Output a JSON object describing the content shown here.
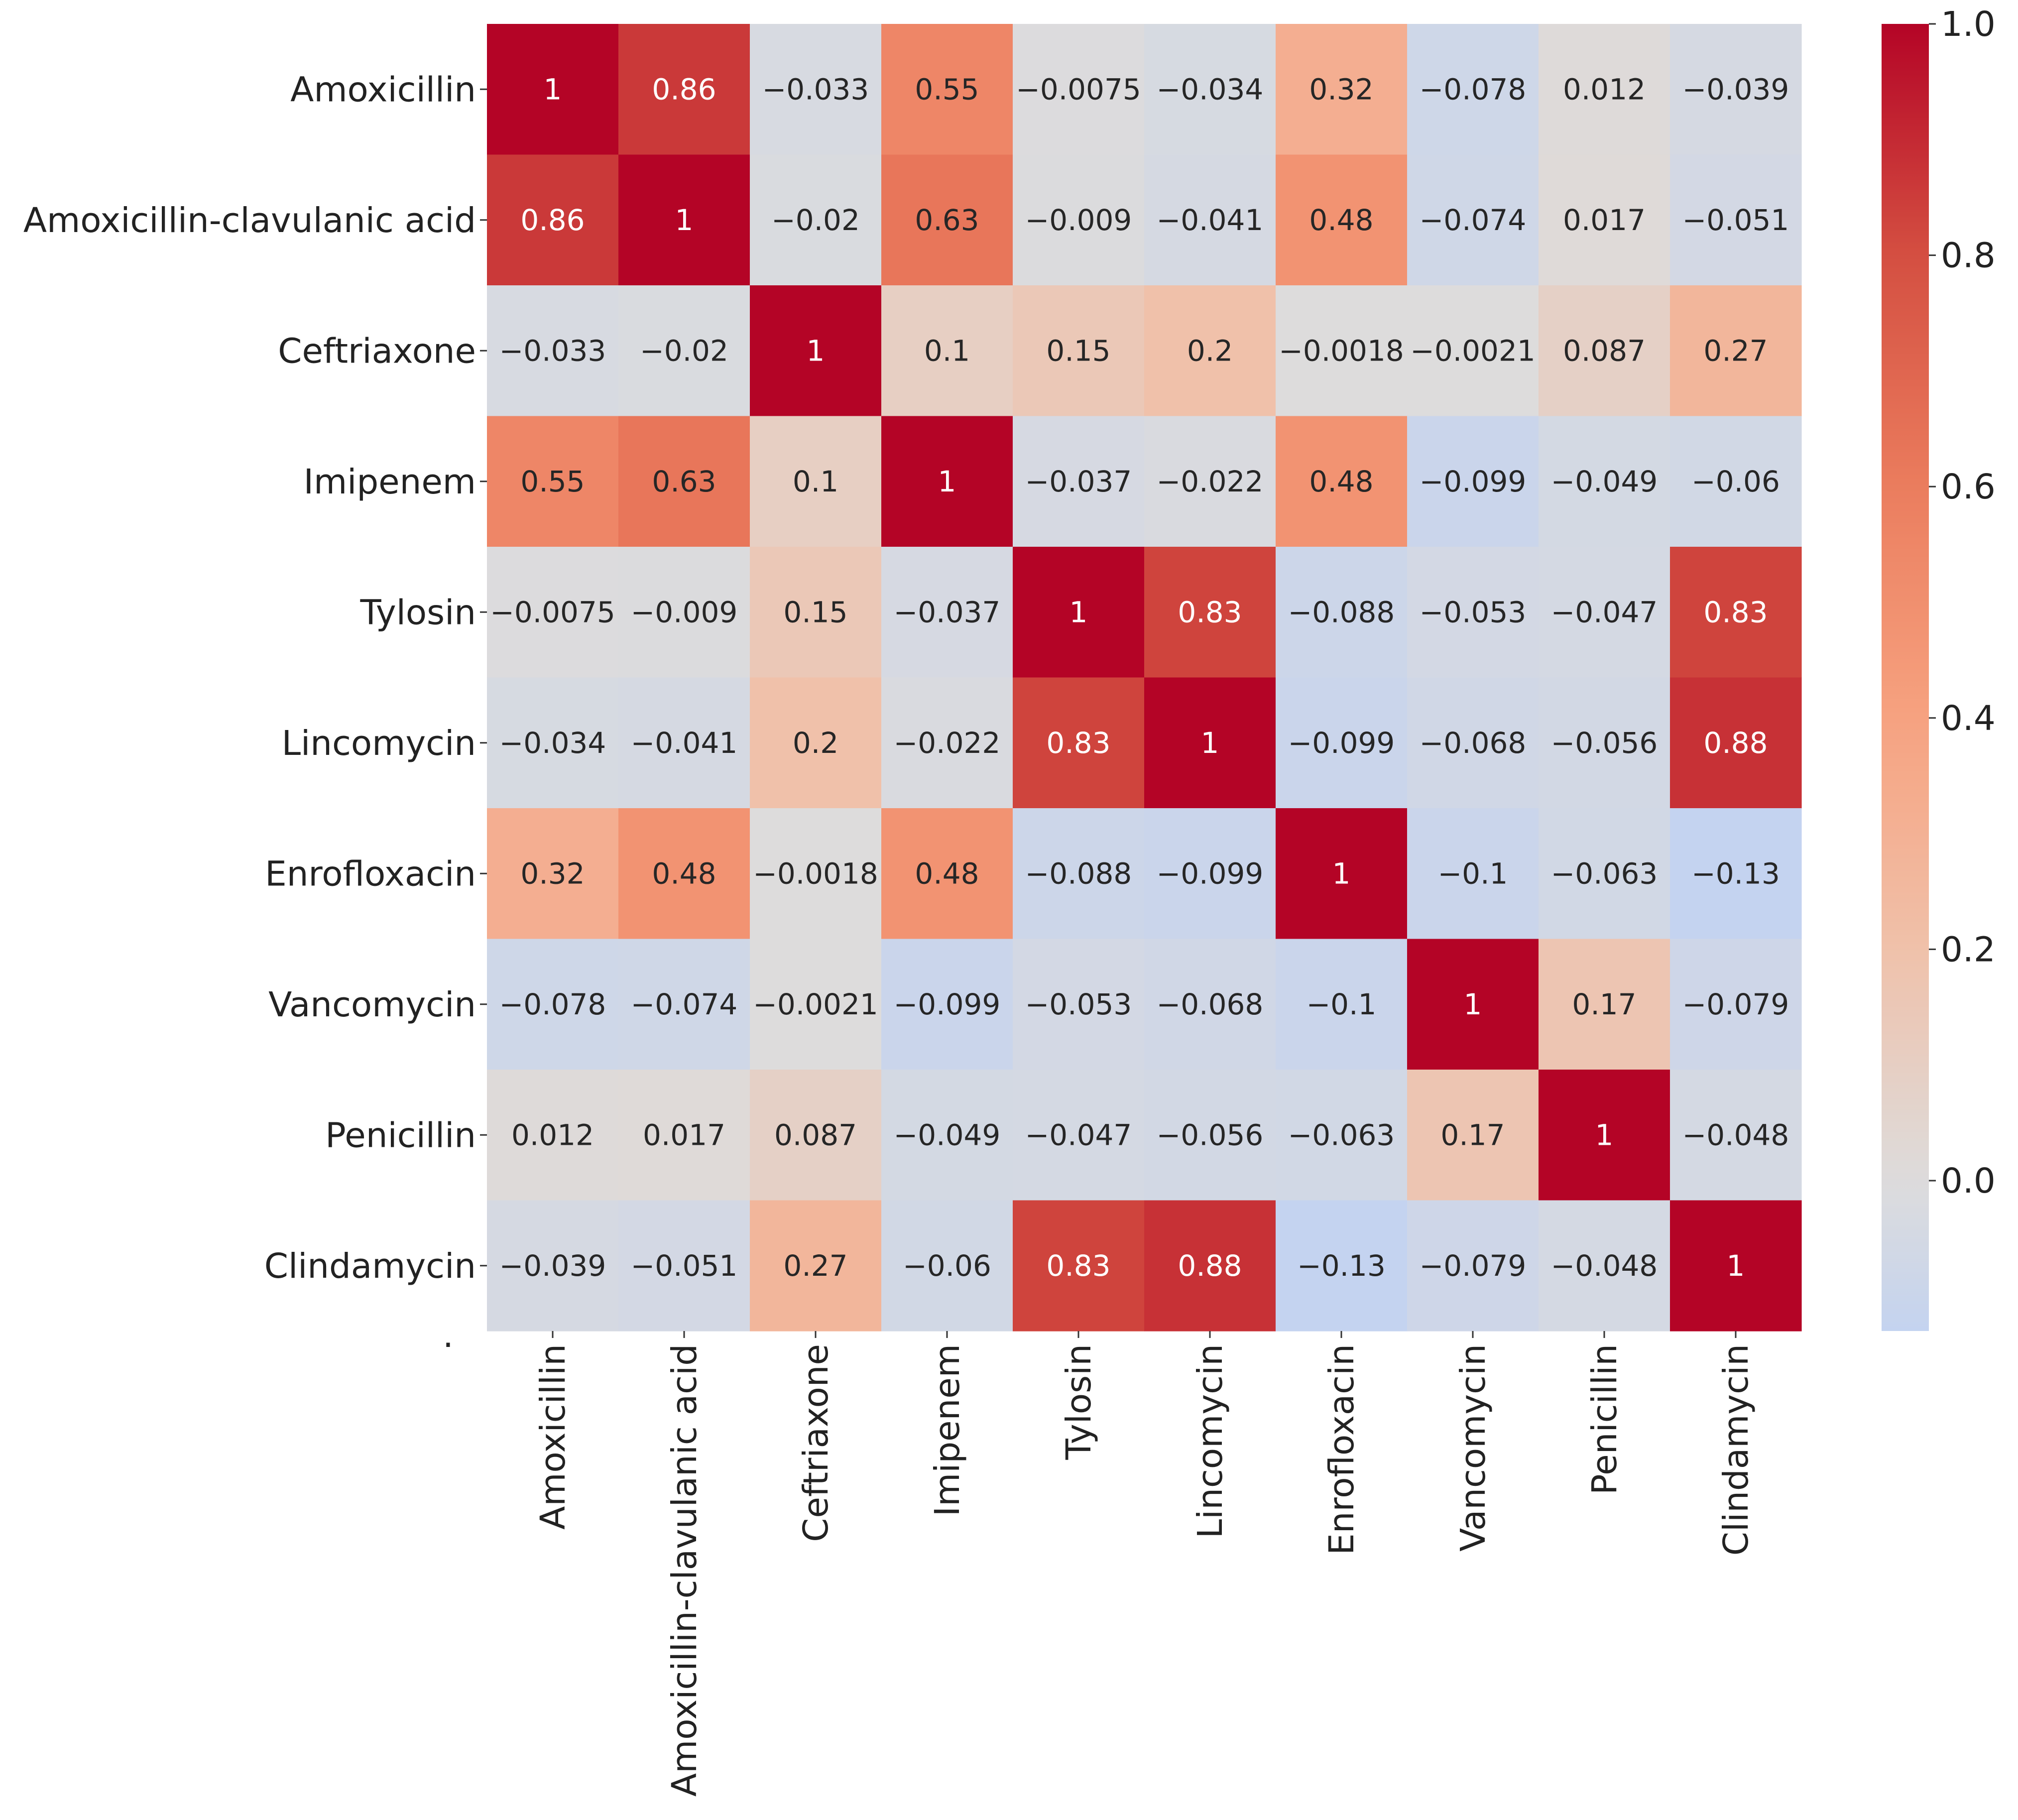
{
  "chart_data": {
    "type": "heatmap",
    "title": "",
    "xlabel": "",
    "ylabel": "",
    "row_labels": [
      "Amoxicillin",
      "Amoxicillin-clavulanic acid",
      "Ceftriaxone",
      "Imipenem",
      "Tylosin",
      "Lincomycin",
      "Enrofloxacin",
      "Vancomycin",
      "Penicillin",
      "Clindamycin"
    ],
    "col_labels": [
      "Amoxicillin",
      "Amoxicillin-clavulanic acid",
      "Ceftriaxone",
      "Imipenem",
      "Tylosin",
      "Lincomycin",
      "Enrofloxacin",
      "Vancomycin",
      "Penicillin",
      "Clindamycin"
    ],
    "values": [
      [
        1,
        0.86,
        -0.033,
        0.55,
        -0.0075,
        -0.034,
        0.32,
        -0.078,
        0.012,
        -0.039
      ],
      [
        0.86,
        1,
        -0.02,
        0.63,
        -0.009,
        -0.041,
        0.48,
        -0.074,
        0.017,
        -0.051
      ],
      [
        -0.033,
        -0.02,
        1,
        0.1,
        0.15,
        0.2,
        -0.0018,
        -0.0021,
        0.087,
        0.27
      ],
      [
        0.55,
        0.63,
        0.1,
        1,
        -0.037,
        -0.022,
        0.48,
        -0.099,
        -0.049,
        -0.06
      ],
      [
        -0.0075,
        -0.009,
        0.15,
        -0.037,
        1,
        0.83,
        -0.088,
        -0.053,
        -0.047,
        0.83
      ],
      [
        -0.034,
        -0.041,
        0.2,
        -0.022,
        0.83,
        1,
        -0.099,
        -0.068,
        -0.056,
        0.88
      ],
      [
        0.32,
        0.48,
        -0.0018,
        0.48,
        -0.088,
        -0.099,
        1,
        -0.1,
        -0.063,
        -0.13
      ],
      [
        -0.078,
        -0.074,
        -0.0021,
        -0.099,
        -0.053,
        -0.068,
        -0.1,
        1,
        0.17,
        -0.079
      ],
      [
        0.012,
        0.017,
        0.087,
        -0.049,
        -0.047,
        -0.056,
        -0.063,
        0.17,
        1,
        -0.048
      ],
      [
        -0.039,
        -0.051,
        0.27,
        -0.06,
        0.83,
        0.88,
        -0.13,
        -0.079,
        -0.048,
        1
      ]
    ],
    "annotations": [
      [
        "1",
        "0.86",
        "−0.033",
        "0.55",
        "−0.0075",
        "−0.034",
        "0.32",
        "−0.078",
        "0.012",
        "−0.039"
      ],
      [
        "0.86",
        "1",
        "−0.02",
        "0.63",
        "−0.009",
        "−0.041",
        "0.48",
        "−0.074",
        "0.017",
        "−0.051"
      ],
      [
        "−0.033",
        "−0.02",
        "1",
        "0.1",
        "0.15",
        "0.2",
        "−0.0018",
        "−0.0021",
        "0.087",
        "0.27"
      ],
      [
        "0.55",
        "0.63",
        "0.1",
        "1",
        "−0.037",
        "−0.022",
        "0.48",
        "−0.099",
        "−0.049",
        "−0.06"
      ],
      [
        "−0.0075",
        "−0.009",
        "0.15",
        "−0.037",
        "1",
        "0.83",
        "−0.088",
        "−0.053",
        "−0.047",
        "0.83"
      ],
      [
        "−0.034",
        "−0.041",
        "0.2",
        "−0.022",
        "0.83",
        "1",
        "−0.099",
        "−0.068",
        "−0.056",
        "0.88"
      ],
      [
        "0.32",
        "0.48",
        "−0.0018",
        "0.48",
        "−0.088",
        "−0.099",
        "1",
        "−0.1",
        "−0.063",
        "−0.13"
      ],
      [
        "−0.078",
        "−0.074",
        "−0.0021",
        "−0.099",
        "−0.053",
        "−0.068",
        "−0.1",
        "1",
        "0.17",
        "−0.079"
      ],
      [
        "0.012",
        "0.017",
        "0.087",
        "−0.049",
        "−0.047",
        "−0.056",
        "−0.063",
        "0.17",
        "1",
        "−0.048"
      ],
      [
        "−0.039",
        "−0.051",
        "0.27",
        "−0.06",
        "0.83",
        "0.88",
        "−0.13",
        "−0.079",
        "−0.048",
        "1"
      ]
    ],
    "colormap": "coolwarm",
    "colormap_center": 0,
    "value_range": [
      -0.13,
      1.0
    ],
    "colorbar": {
      "range": [
        -0.13,
        1.0
      ],
      "ticks": [
        0.0,
        0.2,
        0.4,
        0.6,
        0.8,
        1.0
      ],
      "tick_labels": [
        "0.0",
        "0.2",
        "0.4",
        "0.6",
        "0.8",
        "1.0"
      ]
    },
    "stray_mark": "."
  }
}
